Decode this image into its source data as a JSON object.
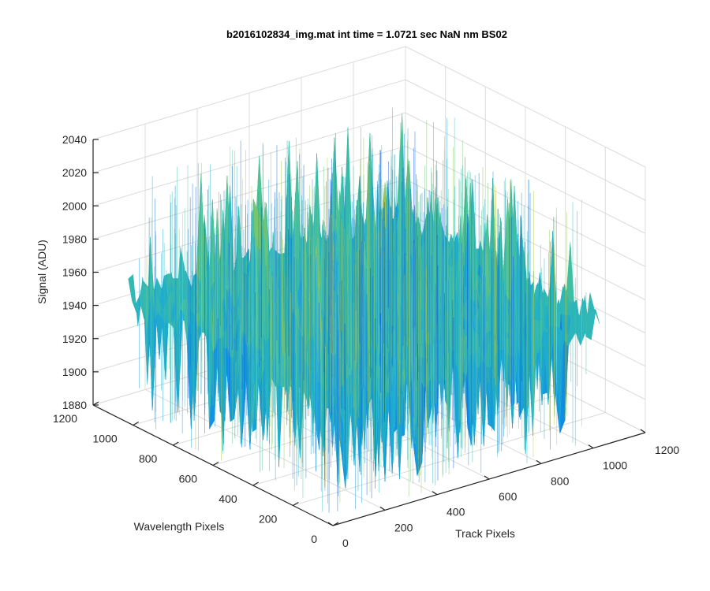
{
  "chart_data": {
    "type": "surface",
    "title": "b2016102834_img.mat int time = 1.0721 sec  NaN nm BS02",
    "xlabel": "Track Pixels",
    "ylabel": "Wavelength Pixels",
    "zlabel": "Signal (ADU)",
    "xlim": [
      0,
      1200
    ],
    "ylim": [
      0,
      1200
    ],
    "zlim": [
      1880,
      2040
    ],
    "xticks": [
      "0",
      "200",
      "400",
      "600",
      "800",
      "1000",
      "1200"
    ],
    "yticks": [
      "0",
      "200",
      "400",
      "600",
      "800",
      "1000",
      "1200"
    ],
    "zticks": [
      "1880",
      "1900",
      "1920",
      "1940",
      "1960",
      "1980",
      "2000",
      "2020",
      "2040"
    ],
    "x_extent": [
      0,
      1024
    ],
    "y_extent": [
      0,
      1024
    ],
    "z_noise_range": [
      1890,
      2030
    ],
    "z_mean_approx": 1955,
    "grid": true,
    "colormap": "parula",
    "colormap_stops": [
      "#0d47e6",
      "#1191e6",
      "#21b0c8",
      "#48c39b",
      "#a4c44a",
      "#e8d43a"
    ]
  }
}
